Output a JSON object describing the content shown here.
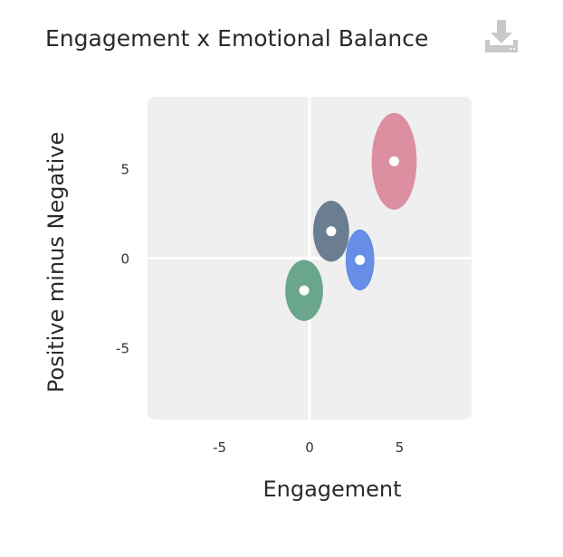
{
  "chart_data": {
    "type": "scatter",
    "title": "Engagement x Emotional Balance",
    "xlabel": "Engagement",
    "ylabel": "Positive minus Negative",
    "xlim": [
      -9,
      9
    ],
    "ylim": [
      -9,
      9
    ],
    "xticks": [
      -5,
      0,
      5
    ],
    "yticks": [
      -5,
      0,
      5
    ],
    "grid": false,
    "zero_lines": true,
    "points": [
      {
        "x": 4.7,
        "y": 5.4,
        "rx": 1.25,
        "ry": 2.7,
        "color": "#d9879a"
      },
      {
        "x": 1.2,
        "y": 1.5,
        "rx": 1.0,
        "ry": 1.7,
        "color": "#5f7489"
      },
      {
        "x": 2.8,
        "y": -0.1,
        "rx": 0.8,
        "ry": 1.7,
        "color": "#5b86e5"
      },
      {
        "x": -0.3,
        "y": -1.8,
        "rx": 1.05,
        "ry": 1.7,
        "color": "#5e9e84"
      }
    ]
  },
  "toolbar": {
    "download_icon": "download-icon"
  },
  "colors": {
    "plot_background": "#efefef",
    "zero_line": "#ffffff",
    "icon": "#c8c8c8"
  }
}
